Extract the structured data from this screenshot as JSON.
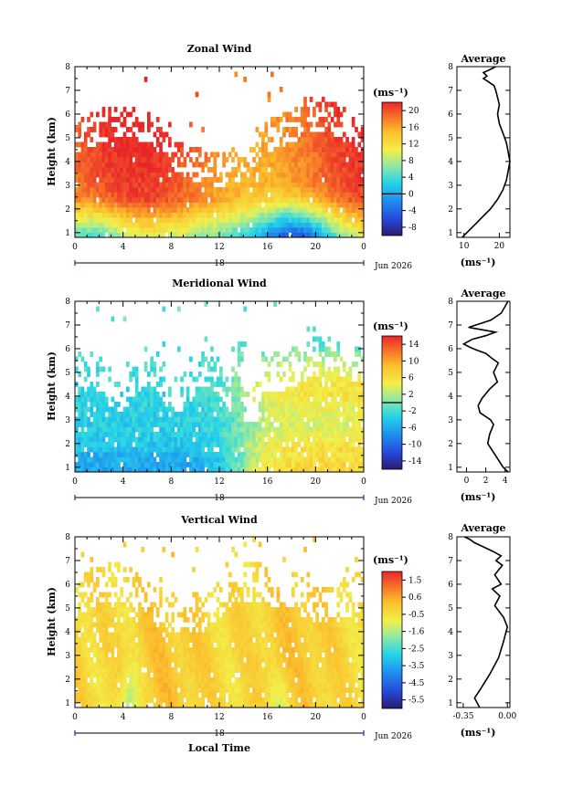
{
  "chart_data": [
    {
      "type": "heatmap",
      "title": "Zonal Wind",
      "ylabel": "Height (km)",
      "ylim": [
        0.8,
        8
      ],
      "yticks": [
        1,
        2,
        3,
        4,
        5,
        6,
        7,
        8
      ],
      "xlim": [
        0,
        24
      ],
      "xticks": [
        "0",
        "4",
        "8",
        "12",
        "16",
        "20",
        "0"
      ],
      "day": "18",
      "date": "Jun 2026",
      "colorbar": {
        "unit": "(ms⁻¹)",
        "ticks": [
          "20",
          "16",
          "12",
          "8",
          "4",
          "0",
          "-4",
          "-8"
        ],
        "range": [
          -10,
          22
        ]
      },
      "field_description": "westerly 14-22 m/s between 1.5-5 km through the day; weaker 4-10 m/s near 1-2 km around 16-22 LT",
      "profile": {
        "title": "Average",
        "xlabel": "(ms⁻¹)",
        "xlim": [
          8,
          23
        ],
        "xticks": [
          "10",
          "20"
        ],
        "x": [
          9.5,
          11.5,
          13.5,
          15.5,
          17.5,
          19.5,
          21,
          22,
          22.5,
          23,
          22.5,
          22,
          21,
          20,
          19.5,
          20,
          19.5,
          19,
          18.5,
          16.5,
          15.5,
          16.5,
          15.5,
          17,
          19
        ],
        "y": [
          0.8,
          1.1,
          1.4,
          1.7,
          2.0,
          2.4,
          2.8,
          3.2,
          3.6,
          4.0,
          4.4,
          4.8,
          5.2,
          5.6,
          6.0,
          6.4,
          6.7,
          7.0,
          7.2,
          7.4,
          7.5,
          7.6,
          7.75,
          7.85,
          8.0
        ]
      }
    },
    {
      "type": "heatmap",
      "title": "Meridional Wind",
      "ylabel": "Height (km)",
      "ylim": [
        0.8,
        8
      ],
      "yticks": [
        1,
        2,
        3,
        4,
        5,
        6,
        7,
        8
      ],
      "xlim": [
        0,
        24
      ],
      "xticks": [
        "0",
        "4",
        "8",
        "12",
        "16",
        "20",
        "0"
      ],
      "day": "18",
      "date": "Jun 2026",
      "colorbar": {
        "unit": "(ms⁻¹)",
        "ticks": [
          "14",
          "10",
          "6",
          "2",
          "-2",
          "-6",
          "-10",
          "-14"
        ],
        "range": [
          -16,
          16
        ]
      },
      "field_description": "southerly -2 to -6 m/s below 4 km before 12 LT; northerly 4-10 m/s between 1.5-5 km after 14 LT",
      "profile": {
        "title": "Average",
        "xlabel": "(ms⁻¹)",
        "xlim": [
          -1,
          4.5
        ],
        "xticks": [
          "0",
          "2",
          "4"
        ],
        "x": [
          4.3,
          3.8,
          3.0,
          2.2,
          2.4,
          2.8,
          2.5,
          1.4,
          1.2,
          1.6,
          2.4,
          3.2,
          2.8,
          3.3,
          2.6,
          2.0,
          1.0,
          0.4,
          -0.3,
          0.6,
          2.0,
          3.0,
          0.2,
          2.5,
          3.6,
          4.3
        ],
        "y": [
          0.8,
          1.0,
          1.5,
          2.0,
          2.4,
          2.8,
          3.0,
          3.3,
          3.6,
          3.9,
          4.3,
          4.6,
          5.0,
          5.4,
          5.6,
          5.8,
          5.95,
          6.05,
          6.2,
          6.4,
          6.55,
          6.7,
          6.9,
          7.2,
          7.5,
          8.0
        ]
      }
    },
    {
      "type": "heatmap",
      "title": "Vertical Wind",
      "ylabel": "Height (km)",
      "xlabel": "Local Time",
      "ylim": [
        0.8,
        8
      ],
      "yticks": [
        1,
        2,
        3,
        4,
        5,
        6,
        7,
        8
      ],
      "xlim": [
        0,
        24
      ],
      "xticks": [
        "0",
        "4",
        "8",
        "12",
        "16",
        "20",
        "0"
      ],
      "day": "18",
      "date": "Jun 2026",
      "colorbar": {
        "unit": "(ms⁻¹)",
        "ticks": [
          "1.5",
          "0.6",
          "-0.5",
          "-1.6",
          "-2.5",
          "-3.5",
          "-4.5",
          "-5.5"
        ],
        "range": [
          -6,
          2
        ]
      },
      "field_description": "mostly -0.5 to 0.5 m/s downward-to-neutral, stronger downward streaks near 4-6 LT",
      "profile": {
        "title": "Average",
        "xlabel": "(ms⁻¹)",
        "xlim": [
          -0.4,
          0.02
        ],
        "xticks": [
          "-0.35",
          "0.00"
        ],
        "x": [
          -0.22,
          -0.26,
          -0.21,
          -0.14,
          -0.07,
          -0.03,
          0.0,
          -0.03,
          -0.1,
          -0.06,
          -0.12,
          -0.05,
          -0.1,
          -0.04,
          -0.09,
          -0.05,
          -0.12,
          -0.2,
          -0.26,
          -0.3,
          -0.34
        ],
        "y": [
          0.8,
          1.2,
          1.6,
          2.2,
          2.9,
          3.6,
          4.2,
          4.6,
          5.1,
          5.5,
          5.8,
          6.0,
          6.4,
          6.8,
          7.0,
          7.2,
          7.4,
          7.6,
          7.75,
          7.9,
          8.0
        ]
      }
    }
  ]
}
